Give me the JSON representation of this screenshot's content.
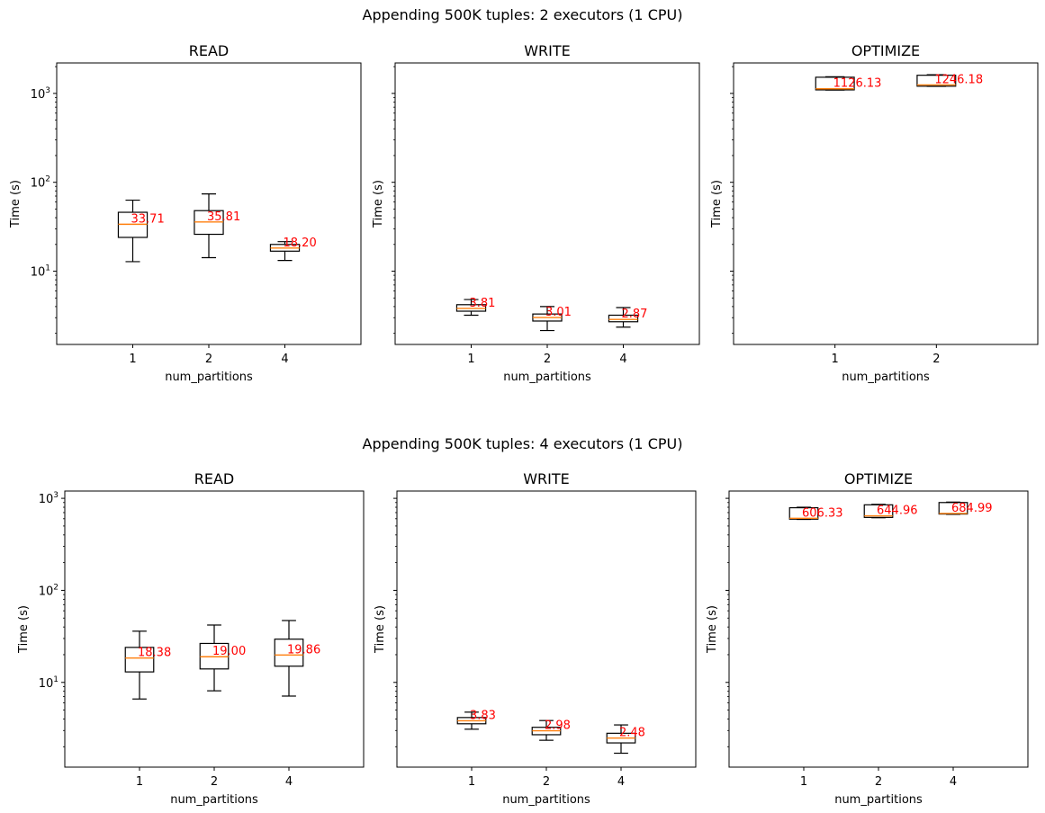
{
  "chart_data": [
    {
      "type": "box",
      "suptitle": "Appending 500K tuples: 2 executors (1 CPU)",
      "panels": [
        {
          "title": "READ",
          "xlabel": "num_partitions",
          "ylabel": "Time (s)",
          "yscale": "log",
          "ylim": [
            1.5,
            2200
          ],
          "categories": [
            "1",
            "2",
            "4"
          ],
          "boxes": [
            {
              "whislo": 12.8,
              "q1": 24,
              "med": 33.71,
              "q3": 46,
              "whishi": 63,
              "label": "33.71"
            },
            {
              "whislo": 14.2,
              "q1": 26,
              "med": 35.81,
              "q3": 48,
              "whishi": 74,
              "label": "35.81"
            },
            {
              "whislo": 13.2,
              "q1": 16.8,
              "med": 18.2,
              "q3": 20,
              "whishi": 21.5,
              "label": "18.20"
            }
          ]
        },
        {
          "title": "WRITE",
          "xlabel": "num_partitions",
          "ylabel": "Time (s)",
          "yscale": "log",
          "ylim": [
            1.5,
            2200
          ],
          "categories": [
            "1",
            "2",
            "4"
          ],
          "boxes": [
            {
              "whislo": 3.2,
              "q1": 3.55,
              "med": 3.81,
              "q3": 4.2,
              "whishi": 4.8,
              "label": "3.81"
            },
            {
              "whislo": 2.15,
              "q1": 2.75,
              "med": 3.01,
              "q3": 3.3,
              "whishi": 4.0,
              "label": "3.01"
            },
            {
              "whislo": 2.35,
              "q1": 2.7,
              "med": 2.87,
              "q3": 3.2,
              "whishi": 3.9,
              "label": "2.87"
            }
          ]
        },
        {
          "title": "OPTIMIZE",
          "xlabel": "num_partitions",
          "ylabel": "Time (s)",
          "yscale": "log",
          "ylim": [
            1.5,
            2200
          ],
          "categories": [
            "1",
            "2"
          ],
          "boxes": [
            {
              "whislo": 1090,
              "q1": 1095,
              "med": 1126.13,
              "q3": 1520,
              "whishi": 1540,
              "label": "1126.13"
            },
            {
              "whislo": 1200,
              "q1": 1205,
              "med": 1246.18,
              "q3": 1600,
              "whishi": 1620,
              "label": "1246.18"
            }
          ]
        }
      ]
    },
    {
      "type": "box",
      "suptitle": "Appending 500K tuples: 4 executors (1 CPU)",
      "panels": [
        {
          "title": "READ",
          "xlabel": "num_partitions",
          "ylabel": "Time (s)",
          "yscale": "log",
          "ylim": [
            1.2,
            1200
          ],
          "categories": [
            "1",
            "2",
            "4"
          ],
          "boxes": [
            {
              "whislo": 6.6,
              "q1": 13,
              "med": 18.38,
              "q3": 24,
              "whishi": 36,
              "label": "18.38"
            },
            {
              "whislo": 8.1,
              "q1": 14,
              "med": 19.0,
              "q3": 26.5,
              "whishi": 42,
              "label": "19.00"
            },
            {
              "whislo": 7.1,
              "q1": 15,
              "med": 19.86,
              "q3": 29.5,
              "whishi": 47,
              "label": "19.86"
            }
          ]
        },
        {
          "title": "WRITE",
          "xlabel": "num_partitions",
          "ylabel": "Time (s)",
          "yscale": "log",
          "ylim": [
            1.2,
            1200
          ],
          "categories": [
            "1",
            "2",
            "4"
          ],
          "boxes": [
            {
              "whislo": 3.1,
              "q1": 3.55,
              "med": 3.83,
              "q3": 4.15,
              "whishi": 4.75,
              "label": "3.83"
            },
            {
              "whislo": 2.35,
              "q1": 2.7,
              "med": 2.98,
              "q3": 3.25,
              "whishi": 3.85,
              "label": "2.98"
            },
            {
              "whislo": 1.7,
              "q1": 2.2,
              "med": 2.48,
              "q3": 2.8,
              "whishi": 3.45,
              "label": "2.48"
            }
          ]
        },
        {
          "title": "OPTIMIZE",
          "xlabel": "num_partitions",
          "ylabel": "Time (s)",
          "yscale": "log",
          "ylim": [
            1.2,
            1200
          ],
          "categories": [
            "1",
            "2",
            "4"
          ],
          "boxes": [
            {
              "whislo": 590,
              "q1": 594,
              "med": 606.33,
              "q3": 790,
              "whishi": 800,
              "label": "606.33"
            },
            {
              "whislo": 615,
              "q1": 620,
              "med": 644.96,
              "q3": 850,
              "whishi": 860,
              "label": "644.96"
            },
            {
              "whislo": 670,
              "q1": 675,
              "med": 684.99,
              "q3": 900,
              "whishi": 910,
              "label": "684.99"
            }
          ]
        }
      ]
    }
  ],
  "tick_labels": {
    "y_major": [
      {
        "value": 10,
        "base": "10",
        "exp": "1"
      },
      {
        "value": 100,
        "base": "10",
        "exp": "2"
      },
      {
        "value": 1000,
        "base": "10",
        "exp": "3"
      }
    ]
  },
  "colors": {
    "axes": "#000000",
    "median": "#ff7f0e",
    "annotation": "#ff0000",
    "background": "#ffffff"
  }
}
